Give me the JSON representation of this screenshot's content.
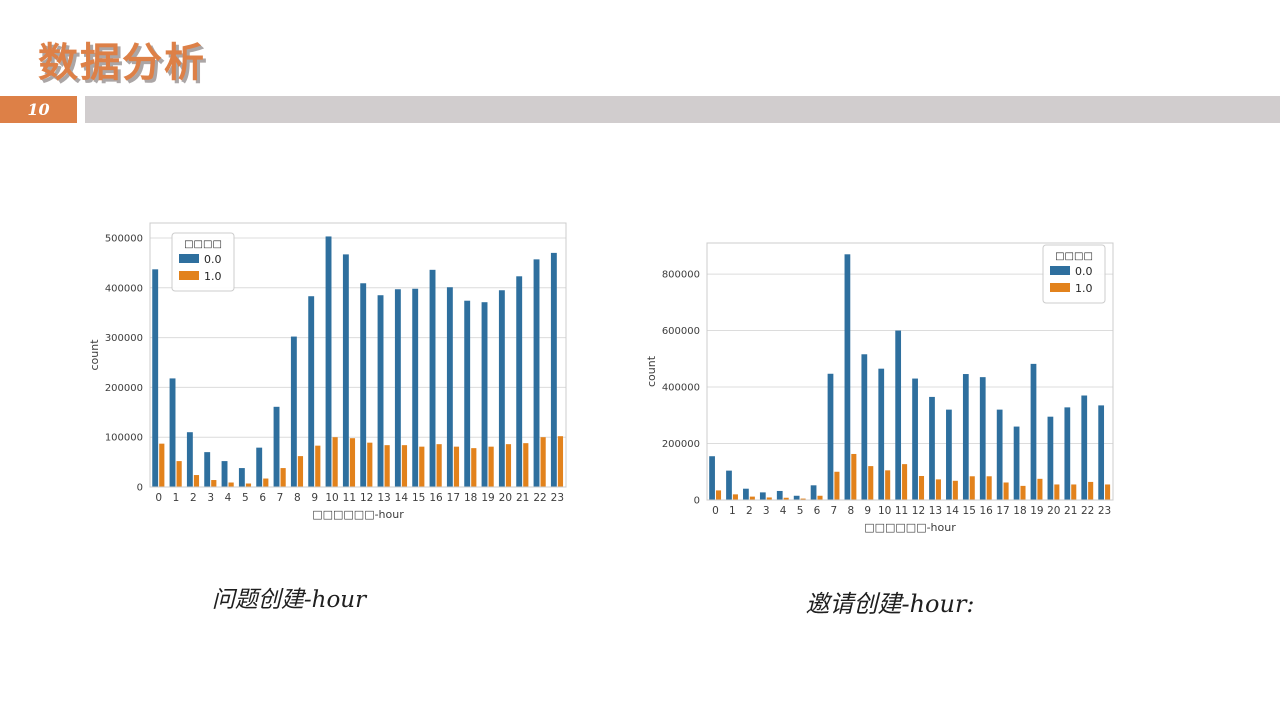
{
  "slide": {
    "title": "数据分析",
    "page_number": "10"
  },
  "captions": {
    "left": "问题创建-hour",
    "right": "邀请创建-hour:"
  },
  "colors": {
    "accent_orange": "#DD8047",
    "header_bar_gray": "#d1cdce",
    "bar_blue": "#2e6f9e",
    "bar_orange": "#e2821c",
    "grid_line": "#dcdcdc",
    "plot_border": "#cccccc",
    "tick_text": "#3d3d3d"
  },
  "chart_data": [
    {
      "type": "bar",
      "title": "",
      "xlabel": "□□□□□□-hour",
      "ylabel": "count",
      "categories": [
        "0",
        "1",
        "2",
        "3",
        "4",
        "5",
        "6",
        "7",
        "8",
        "9",
        "10",
        "11",
        "12",
        "13",
        "14",
        "15",
        "16",
        "17",
        "18",
        "19",
        "20",
        "21",
        "22",
        "23"
      ],
      "series": [
        {
          "name": "0.0",
          "color": "#2e6f9e",
          "values": [
            437000,
            218000,
            110000,
            70000,
            52000,
            38000,
            79000,
            161000,
            302000,
            383000,
            503000,
            467000,
            409000,
            385000,
            397000,
            398000,
            436000,
            401000,
            374000,
            371000,
            395000,
            423000,
            457000,
            470000
          ]
        },
        {
          "name": "1.0",
          "color": "#e2821c",
          "values": [
            87000,
            52000,
            24000,
            14000,
            9000,
            7000,
            17000,
            38000,
            62000,
            83000,
            100000,
            98000,
            89000,
            84000,
            84000,
            81000,
            86000,
            81000,
            78000,
            81000,
            86000,
            88000,
            100000,
            102000
          ]
        }
      ],
      "legend": {
        "title": "□□□□",
        "position": "upper-left",
        "entries": [
          "0.0",
          "1.0"
        ]
      },
      "ylim": [
        0,
        530000
      ],
      "yticks": [
        0,
        100000,
        200000,
        300000,
        400000,
        500000
      ],
      "grid": "horizontal"
    },
    {
      "type": "bar",
      "title": "",
      "xlabel": "□□□□□□-hour",
      "ylabel": "count",
      "categories": [
        "0",
        "1",
        "2",
        "3",
        "4",
        "5",
        "6",
        "7",
        "8",
        "9",
        "10",
        "11",
        "12",
        "13",
        "14",
        "15",
        "16",
        "17",
        "18",
        "19",
        "20",
        "21",
        "22",
        "23"
      ],
      "series": [
        {
          "name": "0.0",
          "color": "#2e6f9e",
          "values": [
            155000,
            104000,
            40000,
            27000,
            32000,
            15000,
            52000,
            447000,
            870000,
            516000,
            465000,
            600000,
            430000,
            365000,
            320000,
            446000,
            435000,
            320000,
            260000,
            482000,
            295000,
            328000,
            370000,
            335000
          ]
        },
        {
          "name": "1.0",
          "color": "#e2821c",
          "values": [
            34000,
            20000,
            12000,
            9000,
            8000,
            5000,
            15000,
            100000,
            163000,
            120000,
            105000,
            127000,
            85000,
            73000,
            68000,
            84000,
            84000,
            62000,
            50000,
            75000,
            55000,
            55000,
            64000,
            55000
          ]
        }
      ],
      "legend": {
        "title": "□□□□",
        "position": "upper-right",
        "entries": [
          "0.0",
          "1.0"
        ]
      },
      "ylim": [
        0,
        910000
      ],
      "yticks": [
        0,
        200000,
        400000,
        600000,
        800000
      ],
      "grid": "horizontal"
    }
  ]
}
